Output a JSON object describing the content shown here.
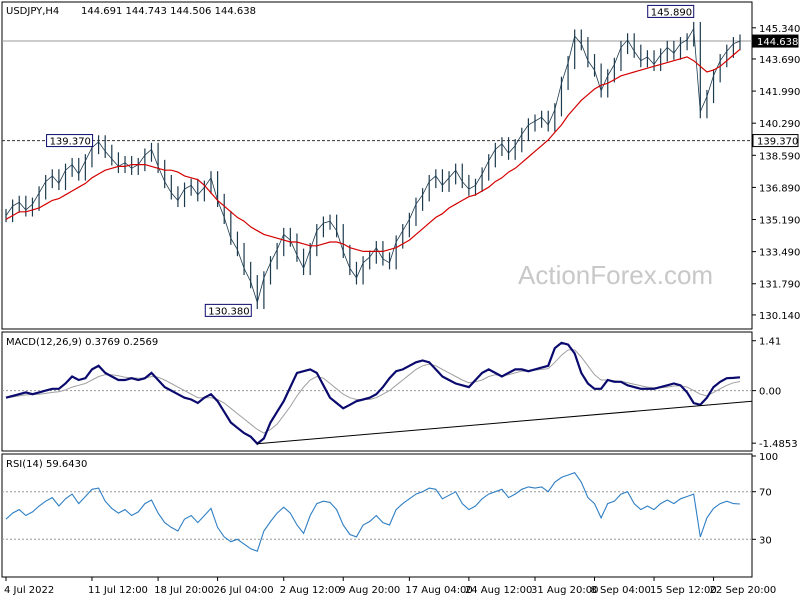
{
  "header": {
    "symbol": "USDJPY,H4",
    "ohlc": "144.691 144.743 144.506 144.638"
  },
  "watermark": "ActionForex.com",
  "colors": {
    "price": "#1c3a4e",
    "sma": "#d40000",
    "macd": "#0a0a6e",
    "signal": "#a0a0a0",
    "rsi": "#2f7fc4",
    "frame": "#000000",
    "level_line": "#555555"
  },
  "chart_data": [
    {
      "type": "line",
      "panel": "price",
      "ylim": [
        129.5,
        146.6
      ],
      "yticks": [
        "145.340",
        "143.690",
        "141.990",
        "140.290",
        "138.590",
        "136.890",
        "135.190",
        "133.490",
        "131.790",
        "130.140"
      ],
      "current_price": "144.638",
      "horizontal_levels": [
        {
          "label": "139.370",
          "value": 139.37,
          "style": "dashed",
          "label_side": "right"
        },
        {
          "label": "144.638",
          "value": 144.638,
          "style": "solid",
          "label_side": "right"
        }
      ],
      "annotations": [
        {
          "label": "139.370",
          "x_index": 14,
          "value": 139.37
        },
        {
          "label": "130.380",
          "x_index": 38,
          "value": 130.38
        },
        {
          "label": "145.890",
          "x_index": 104,
          "value": 145.89
        }
      ],
      "x_labels": [
        {
          "label": "4 Jul 2022",
          "index": 0
        },
        {
          "label": "11 Jul 12:00",
          "index": 13
        },
        {
          "label": "18 Jul 20:00",
          "index": 23
        },
        {
          "label": "26 Jul 04:00",
          "index": 32
        },
        {
          "label": "2 Aug 12:00",
          "index": 42
        },
        {
          "label": "9 Aug 20:00",
          "index": 51
        },
        {
          "label": "17 Aug 04:00",
          "index": 61
        },
        {
          "label": "24 Aug 12:00",
          "index": 70
        },
        {
          "label": "31 Aug 20:00",
          "index": 80
        },
        {
          "label": "8 Sep 04:00",
          "index": 89
        },
        {
          "label": "15 Sep 12:00",
          "index": 98
        },
        {
          "label": "22 Sep 20:00",
          "index": 107
        }
      ],
      "close": [
        135.4,
        135.9,
        136.1,
        135.7,
        136.0,
        136.6,
        137.2,
        137.5,
        137.1,
        137.8,
        138.1,
        137.6,
        138.3,
        139.0,
        139.3,
        138.8,
        138.4,
        138.0,
        138.2,
        137.9,
        138.1,
        138.6,
        138.9,
        138.0,
        137.2,
        136.6,
        136.2,
        136.8,
        137.0,
        136.5,
        136.9,
        137.4,
        136.2,
        135.3,
        134.2,
        133.6,
        132.6,
        131.9,
        130.8,
        132.1,
        132.9,
        133.6,
        134.4,
        134.1,
        133.3,
        132.6,
        133.6,
        134.6,
        135.0,
        135.1,
        134.6,
        133.5,
        132.6,
        132.1,
        132.9,
        133.2,
        133.7,
        133.1,
        132.9,
        134.0,
        134.6,
        135.2,
        136.0,
        136.5,
        137.2,
        137.5,
        137.0,
        137.4,
        137.8,
        137.2,
        136.8,
        137.0,
        137.6,
        138.3,
        138.9,
        139.2,
        138.7,
        139.1,
        139.7,
        140.2,
        140.4,
        140.6,
        140.2,
        141.0,
        142.4,
        143.5,
        144.9,
        144.5,
        143.6,
        143.1,
        142.0,
        142.8,
        143.4,
        144.3,
        144.7,
        144.1,
        143.6,
        143.8,
        143.4,
        143.9,
        144.3,
        144.0,
        144.5,
        144.7,
        145.3,
        140.9,
        141.7,
        142.8,
        143.6,
        144.1,
        144.5,
        144.638
      ],
      "series": [
        {
          "name": "",
          "values": [
            135.2,
            135.4,
            135.6,
            135.6,
            135.7,
            135.8,
            136.0,
            136.2,
            136.3,
            136.5,
            136.7,
            136.9,
            137.1,
            137.4,
            137.6,
            137.8,
            137.9,
            138.0,
            138.0,
            138.1,
            138.1,
            138.1,
            138.0,
            137.9,
            137.8,
            137.8,
            137.7,
            137.5,
            137.4,
            137.3,
            137.0,
            136.6,
            136.2,
            135.9,
            135.6,
            135.3,
            135.1,
            134.8,
            134.6,
            134.4,
            134.3,
            134.2,
            134.1,
            134.0,
            134.0,
            133.9,
            133.8,
            133.8,
            133.9,
            134.0,
            134.0,
            133.9,
            133.7,
            133.6,
            133.5,
            133.5,
            133.5,
            133.5,
            133.6,
            133.7,
            133.9,
            134.1,
            134.4,
            134.7,
            135.0,
            135.3,
            135.5,
            135.8,
            136.0,
            136.2,
            136.4,
            136.5,
            136.7,
            136.9,
            137.2,
            137.4,
            137.7,
            137.9,
            138.2,
            138.5,
            138.8,
            139.1,
            139.4,
            139.8,
            140.2,
            140.7,
            141.1,
            141.5,
            141.8,
            142.1,
            142.3,
            142.4,
            142.6,
            142.8,
            142.9,
            143.0,
            143.1,
            143.2,
            143.3,
            143.4,
            143.5,
            143.6,
            143.7,
            143.8,
            143.6,
            143.3,
            143.0,
            143.1,
            143.3,
            143.6,
            143.9,
            144.2
          ]
        }
      ]
    },
    {
      "type": "line",
      "panel": "macd",
      "label": "MACD(12,26,9) 0.3769 0.2569",
      "ylim": [
        -1.65,
        1.6
      ],
      "yticks": [
        "1.41",
        "0.00",
        "-1.4853"
      ],
      "series": [
        {
          "name": "",
          "values": [
            -0.2,
            -0.15,
            -0.1,
            -0.05,
            -0.1,
            -0.05,
            0.0,
            0.05,
            0.05,
            0.2,
            0.4,
            0.3,
            0.35,
            0.6,
            0.7,
            0.5,
            0.4,
            0.3,
            0.3,
            0.35,
            0.3,
            0.35,
            0.5,
            0.3,
            0.1,
            0.0,
            -0.1,
            -0.2,
            -0.25,
            -0.35,
            -0.2,
            -0.1,
            -0.3,
            -0.6,
            -0.9,
            -1.05,
            -1.2,
            -1.3,
            -1.5,
            -1.35,
            -0.9,
            -0.6,
            -0.3,
            0.1,
            0.5,
            0.55,
            0.6,
            0.5,
            0.15,
            -0.2,
            -0.35,
            -0.5,
            -0.4,
            -0.3,
            -0.25,
            -0.2,
            -0.1,
            0.1,
            0.35,
            0.55,
            0.6,
            0.7,
            0.8,
            0.85,
            0.8,
            0.6,
            0.4,
            0.3,
            0.2,
            0.15,
            0.1,
            0.3,
            0.5,
            0.6,
            0.5,
            0.4,
            0.5,
            0.6,
            0.6,
            0.55,
            0.6,
            0.65,
            0.7,
            1.2,
            1.35,
            1.3,
            1.05,
            0.5,
            0.2,
            0.05,
            0.05,
            0.3,
            0.25,
            0.25,
            0.15,
            0.1,
            0.05,
            0.05,
            0.05,
            0.1,
            0.15,
            0.2,
            0.15,
            -0.05,
            -0.35,
            -0.4,
            -0.2,
            0.1,
            0.25,
            0.35,
            0.36,
            0.3769
          ]
        },
        {
          "name": "",
          "values": [
            -0.2,
            -0.18,
            -0.15,
            -0.12,
            -0.11,
            -0.1,
            -0.08,
            -0.05,
            -0.03,
            0.02,
            0.1,
            0.15,
            0.2,
            0.3,
            0.4,
            0.45,
            0.45,
            0.42,
            0.38,
            0.36,
            0.35,
            0.35,
            0.4,
            0.38,
            0.3,
            0.2,
            0.1,
            0.0,
            -0.1,
            -0.2,
            -0.2,
            -0.2,
            -0.25,
            -0.35,
            -0.5,
            -0.65,
            -0.8,
            -0.95,
            -1.1,
            -1.2,
            -1.1,
            -0.95,
            -0.7,
            -0.45,
            -0.15,
            0.1,
            0.3,
            0.4,
            0.35,
            0.2,
            0.05,
            -0.1,
            -0.2,
            -0.25,
            -0.25,
            -0.25,
            -0.2,
            -0.1,
            0.0,
            0.15,
            0.3,
            0.45,
            0.6,
            0.7,
            0.75,
            0.7,
            0.6,
            0.5,
            0.4,
            0.3,
            0.22,
            0.25,
            0.3,
            0.4,
            0.45,
            0.42,
            0.45,
            0.5,
            0.55,
            0.55,
            0.58,
            0.6,
            0.62,
            0.8,
            1.0,
            1.15,
            1.15,
            0.95,
            0.7,
            0.45,
            0.3,
            0.3,
            0.28,
            0.26,
            0.22,
            0.18,
            0.14,
            0.1,
            0.08,
            0.08,
            0.1,
            0.13,
            0.14,
            0.1,
            0.0,
            -0.1,
            -0.15,
            -0.05,
            0.05,
            0.15,
            0.22,
            0.2569
          ]
        }
      ],
      "trendline": [
        [
          38,
          -1.5
        ],
        [
          111,
          -0.3
        ]
      ]
    },
    {
      "type": "line",
      "panel": "rsi",
      "label": "RSI(14) 59.6430",
      "ylim": [
        0,
        100
      ],
      "yticks": [
        "100",
        "70",
        "30"
      ],
      "levels": [
        70,
        30
      ],
      "series": [
        {
          "name": "",
          "values": [
            47,
            52,
            55,
            50,
            53,
            58,
            62,
            65,
            58,
            64,
            68,
            60,
            66,
            72,
            73,
            62,
            56,
            52,
            55,
            50,
            53,
            60,
            63,
            52,
            44,
            40,
            37,
            47,
            50,
            44,
            50,
            56,
            40,
            32,
            28,
            30,
            26,
            22,
            20,
            37,
            45,
            52,
            57,
            52,
            42,
            35,
            50,
            60,
            62,
            61,
            55,
            42,
            34,
            32,
            42,
            45,
            50,
            44,
            42,
            55,
            60,
            64,
            68,
            70,
            73,
            72,
            64,
            67,
            70,
            60,
            55,
            58,
            64,
            68,
            70,
            72,
            65,
            68,
            72,
            74,
            73,
            74,
            70,
            78,
            82,
            84,
            86,
            78,
            65,
            60,
            48,
            60,
            62,
            68,
            70,
            60,
            55,
            58,
            55,
            60,
            63,
            60,
            64,
            66,
            68,
            32,
            48,
            56,
            60,
            62,
            60,
            59.643
          ]
        }
      ]
    }
  ]
}
